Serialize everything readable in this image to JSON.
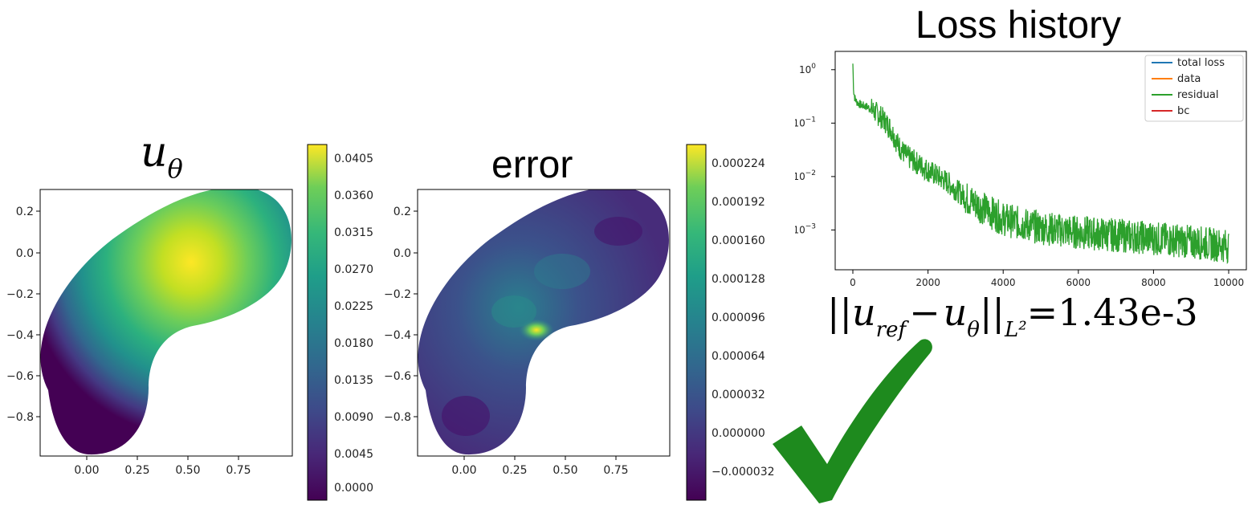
{
  "panels": {
    "u_plot": {
      "title_symbol": "u",
      "title_sub": "θ",
      "x_ticks": [
        "0.00",
        "0.25",
        "0.50",
        "0.75"
      ],
      "y_ticks": [
        "0.2",
        "0.0",
        "−0.2",
        "−0.4",
        "−0.6",
        "−0.8"
      ],
      "colorbar_ticks": [
        "0.0405",
        "0.0360",
        "0.0315",
        "0.0270",
        "0.0225",
        "0.0180",
        "0.0135",
        "0.0090",
        "0.0045",
        "0.0000"
      ]
    },
    "error_plot": {
      "title": "error",
      "x_ticks": [
        "0.00",
        "0.25",
        "0.50",
        "0.75"
      ],
      "y_ticks": [
        "0.2",
        "0.0",
        "−0.2",
        "−0.4",
        "−0.6",
        "−0.8"
      ],
      "colorbar_ticks": [
        "0.000224",
        "0.000192",
        "0.000160",
        "0.000128",
        "0.000096",
        "0.000064",
        "0.000032",
        "0.000000",
        "−0.000032"
      ]
    }
  },
  "loss": {
    "title": "Loss history",
    "x_ticks": [
      "0",
      "2000",
      "4000",
      "6000",
      "8000",
      "10000"
    ],
    "y_ticks_base": "10",
    "y_ticks_exp": [
      "0",
      "−1",
      "−2",
      "−3"
    ],
    "legend": [
      {
        "label": "total loss",
        "color": "#1f77b4"
      },
      {
        "label": "data",
        "color": "#ff7f0e"
      },
      {
        "label": "residual",
        "color": "#2ca02c"
      },
      {
        "label": "bc",
        "color": "#d62728"
      }
    ]
  },
  "chart_data": [
    {
      "type": "heatmap",
      "title": "uθ",
      "xlim": [
        -0.2,
        0.97
      ],
      "ylim": [
        -1.0,
        0.3
      ],
      "colormap": "viridis",
      "colorbar_range": [
        0.0,
        0.0405
      ],
      "colorbar_ticks": [
        0.0405,
        0.036,
        0.0315,
        0.027,
        0.0225,
        0.018,
        0.0135,
        0.009,
        0.0045,
        0.0
      ],
      "peak_value": 0.0405
    },
    {
      "type": "heatmap",
      "title": "error",
      "xlim": [
        -0.2,
        0.97
      ],
      "ylim": [
        -1.0,
        0.3
      ],
      "colormap": "viridis",
      "colorbar_range": [
        -3.2e-05,
        0.000224
      ],
      "colorbar_ticks": [
        0.000224,
        0.000192,
        0.00016,
        0.000128,
        9.6e-05,
        6.4e-05,
        3.2e-05,
        0.0,
        -3.2e-05
      ]
    },
    {
      "type": "line",
      "title": "Loss history",
      "yscale": "log",
      "xlim": [
        0,
        10000
      ],
      "ylim": [
        0.00025,
        1.5
      ],
      "legend_position": "top-right",
      "series": [
        {
          "name": "total loss",
          "color": "#1f77b4"
        },
        {
          "name": "data",
          "color": "#ff7f0e"
        },
        {
          "name": "residual",
          "color": "#2ca02c",
          "x": [
            0,
            20,
            50,
            100,
            200,
            400,
            600,
            800,
            1000,
            1200,
            1400,
            1700,
            2000,
            2500,
            3000,
            3500,
            4000,
            4500,
            5000,
            6000,
            7000,
            8000,
            9000,
            10000
          ],
          "y": [
            1.3,
            0.4,
            0.3,
            0.25,
            0.22,
            0.2,
            0.16,
            0.12,
            0.08,
            0.04,
            0.025,
            0.018,
            0.013,
            0.008,
            0.004,
            0.0025,
            0.0016,
            0.0013,
            0.0011,
            0.0009,
            0.0008,
            0.0007,
            0.0006,
            0.0005
          ]
        },
        {
          "name": "bc",
          "color": "#d62728"
        }
      ]
    }
  ],
  "formula": {
    "norm_open": "||",
    "u1": "u",
    "sub1": "ref",
    "minus": "−",
    "u2": "u",
    "sub2": "θ",
    "norm_close": "||",
    "norm_sub": "L²",
    "equals": "=",
    "value": "1.43e-3"
  },
  "colors": {
    "check": "#1e8a1e",
    "viridis_low": "#440154",
    "viridis_high": "#fde725"
  }
}
